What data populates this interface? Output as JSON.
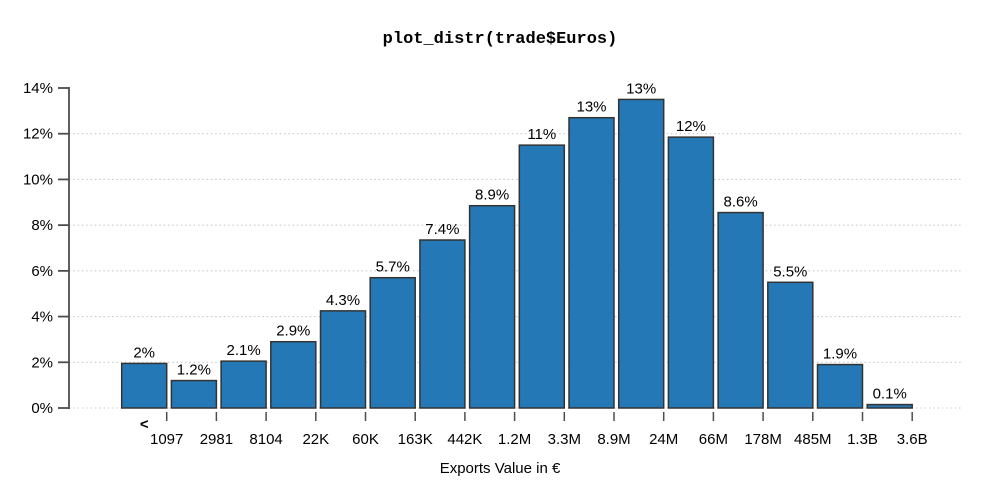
{
  "chart_data": {
    "type": "bar",
    "title": "plot_distr(trade$Euros)",
    "xlabel": "Exports Value in €",
    "ylabel": "",
    "ylim": [
      0,
      14
    ],
    "ytick_values": [
      0,
      2,
      4,
      6,
      8,
      10,
      12,
      14
    ],
    "ytick_labels": [
      "0%",
      "2%",
      "4%",
      "6%",
      "8%",
      "10%",
      "12%",
      "14%"
    ],
    "gridline_values": [
      0,
      2,
      4,
      6,
      8,
      10,
      12
    ],
    "grid_style": "dotted-horizontal",
    "first_bin_marker": "<",
    "bin_edge_labels": [
      "1097",
      "2981",
      "8104",
      "22K",
      "60K",
      "163K",
      "442K",
      "1.2M",
      "3.3M",
      "8.9M",
      "24M",
      "66M",
      "178M",
      "485M",
      "1.3B",
      "3.6B"
    ],
    "bars": [
      {
        "label": "2%",
        "value": 1.95
      },
      {
        "label": "1.2%",
        "value": 1.2
      },
      {
        "label": "2.1%",
        "value": 2.05
      },
      {
        "label": "2.9%",
        "value": 2.9
      },
      {
        "label": "4.3%",
        "value": 4.25
      },
      {
        "label": "5.7%",
        "value": 5.7
      },
      {
        "label": "7.4%",
        "value": 7.35
      },
      {
        "label": "8.9%",
        "value": 8.85
      },
      {
        "label": "11%",
        "value": 11.5
      },
      {
        "label": "13%",
        "value": 12.7
      },
      {
        "label": "13%",
        "value": 13.5
      },
      {
        "label": "12%",
        "value": 11.85
      },
      {
        "label": "8.6%",
        "value": 8.55
      },
      {
        "label": "5.5%",
        "value": 5.5
      },
      {
        "label": "1.9%",
        "value": 1.9
      },
      {
        "label": "0.1%",
        "value": 0.15
      }
    ],
    "legend": null,
    "colors": {
      "background": "#ffffff",
      "bar_fill": "#2478b5",
      "bar_stroke": "#333333",
      "grid_line": "#c9c9c9",
      "axis_line": "#4d4d4d",
      "text": "#000000"
    }
  }
}
